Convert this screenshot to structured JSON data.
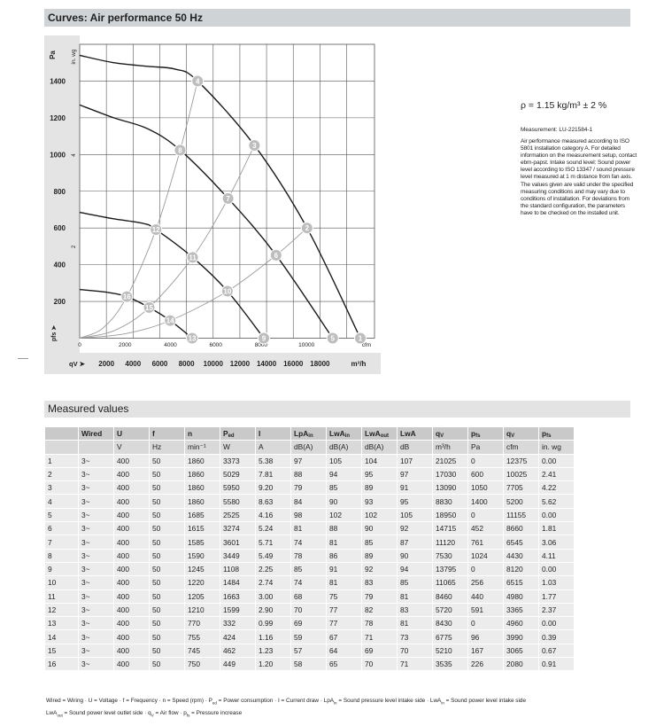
{
  "section_curves": "Curves: Air performance 50 Hz",
  "section_measured": "Measured values",
  "notes": {
    "density": "ρ = 1.15 kg/m³ ± 2 %",
    "measurement": "Measurement: LU-221584-1",
    "paragraph": "Air performance measured according to ISO 5801 installation category A. For detailed information on the measurement setup, contact ebm-papst. Intake sound level: Sound power level according to ISO 13347 / sound pressure level measured at 1 m distance from fan axis. The values given are valid under the specified measuring conditions and may vary due to conditions of installation. For deviations from the standard configuration, the parameters have to be checked on the installed unit."
  },
  "chart_data": {
    "type": "line",
    "ylabel": "Pa",
    "ylabel2": "in. wg",
    "yaxis_marker": "pfs ➤",
    "ylim": [
      0,
      1600
    ],
    "yticks": [
      200,
      400,
      600,
      800,
      1000,
      1200,
      1400
    ],
    "yticks_labels": [
      "200",
      "400",
      "600",
      "800",
      "1000",
      "1200",
      "1400"
    ],
    "y2ticks_labels": [
      "2",
      "4"
    ],
    "y2ticks_inwg": [
      2,
      4
    ],
    "xlabel": "cfm",
    "xlim": [
      0,
      13000
    ],
    "xticks_labels": [
      "0",
      "2000",
      "4000",
      "6000",
      "8000",
      "10000"
    ],
    "xticks_cfm": [
      0,
      2000,
      4000,
      6000,
      8000,
      10000
    ],
    "x2label": "m³/h",
    "x2marker": "qV ➤",
    "x2ticks_labels": [
      "2000",
      "4000",
      "6000",
      "8000",
      "10000",
      "12000",
      "14000",
      "16000",
      "18000"
    ],
    "x2ticks_m3h": [
      2000,
      4000,
      6000,
      8000,
      10000,
      12000,
      14000,
      16000,
      18000
    ],
    "grid": true,
    "fan_curves": [
      {
        "points": [
          [
            0,
            1540
          ],
          [
            1500,
            1500
          ],
          [
            3000,
            1480
          ],
          [
            4200,
            1465
          ],
          [
            5200,
            1400
          ],
          [
            7705,
            1050
          ],
          [
            10025,
            600
          ],
          [
            12375,
            0
          ]
        ]
      },
      {
        "points": [
          [
            0,
            1270
          ],
          [
            1500,
            1200
          ],
          [
            3000,
            1140
          ],
          [
            4430,
            1024
          ],
          [
            6545,
            761
          ],
          [
            8660,
            452
          ],
          [
            11155,
            0
          ]
        ]
      },
      {
        "points": [
          [
            0,
            685
          ],
          [
            1500,
            650
          ],
          [
            2800,
            625
          ],
          [
            3365,
            591
          ],
          [
            4980,
            440
          ],
          [
            6515,
            256
          ],
          [
            8120,
            0
          ]
        ]
      },
      {
        "points": [
          [
            0,
            265
          ],
          [
            1200,
            250
          ],
          [
            2080,
            226
          ],
          [
            3065,
            167
          ],
          [
            3990,
            96
          ],
          [
            4960,
            0
          ]
        ]
      }
    ],
    "system_curves": [
      [
        "16",
        "12",
        "8",
        "4"
      ],
      [
        "15",
        "11",
        "7",
        "3"
      ],
      [
        "14",
        "10",
        "6",
        "2"
      ]
    ],
    "operating_points": [
      {
        "label": "1",
        "cfm": 12375,
        "pa": 0
      },
      {
        "label": "2",
        "cfm": 10025,
        "pa": 600
      },
      {
        "label": "3",
        "cfm": 7705,
        "pa": 1050
      },
      {
        "label": "4",
        "cfm": 5200,
        "pa": 1400
      },
      {
        "label": "5",
        "cfm": 11155,
        "pa": 0
      },
      {
        "label": "6",
        "cfm": 8660,
        "pa": 452
      },
      {
        "label": "7",
        "cfm": 6545,
        "pa": 761
      },
      {
        "label": "8",
        "cfm": 4430,
        "pa": 1024
      },
      {
        "label": "9",
        "cfm": 8120,
        "pa": 0
      },
      {
        "label": "10",
        "cfm": 6515,
        "pa": 256
      },
      {
        "label": "11",
        "cfm": 4980,
        "pa": 440
      },
      {
        "label": "12",
        "cfm": 3365,
        "pa": 591
      },
      {
        "label": "13",
        "cfm": 4960,
        "pa": 0
      },
      {
        "label": "14",
        "cfm": 3990,
        "pa": 96
      },
      {
        "label": "15",
        "cfm": 3065,
        "pa": 167
      },
      {
        "label": "16",
        "cfm": 2080,
        "pa": 226
      }
    ],
    "colors": {
      "fan_curve": "#1a1a1a",
      "system_curve": "#9a9a9a",
      "marker": "#bdbdbd",
      "grid": "#555555",
      "axis_band": "#e4e4e4"
    }
  },
  "table": {
    "headers": [
      [
        ""
      ],
      [
        "Wired"
      ],
      [
        "U"
      ],
      [
        "f"
      ],
      [
        "n"
      ],
      [
        "P",
        "ed"
      ],
      [
        "I"
      ],
      [
        "LpA",
        "in"
      ],
      [
        "LwA",
        "in"
      ],
      [
        "LwA",
        "out"
      ],
      [
        "LwA"
      ],
      [
        "q",
        "V"
      ],
      [
        "p",
        "fs"
      ],
      [
        "q",
        "V"
      ],
      [
        "p",
        "fs"
      ]
    ],
    "units": [
      "",
      "",
      "V",
      "Hz",
      "min⁻¹",
      "W",
      "A",
      "dB(A)",
      "dB(A)",
      "dB(A)",
      "dB",
      "m³/h",
      "Pa",
      "cfm",
      "in. wg"
    ],
    "rows": [
      [
        "1",
        "3~",
        "400",
        "50",
        "1860",
        "3373",
        "5.38",
        "97",
        "105",
        "104",
        "107",
        "21025",
        "0",
        "12375",
        "0.00"
      ],
      [
        "2",
        "3~",
        "400",
        "50",
        "1860",
        "5029",
        "7.81",
        "88",
        "94",
        "95",
        "97",
        "17030",
        "600",
        "10025",
        "2.41"
      ],
      [
        "3",
        "3~",
        "400",
        "50",
        "1860",
        "5950",
        "9.20",
        "79",
        "85",
        "89",
        "91",
        "13090",
        "1050",
        "7705",
        "4.22"
      ],
      [
        "4",
        "3~",
        "400",
        "50",
        "1860",
        "5580",
        "8.63",
        "84",
        "90",
        "93",
        "95",
        "8830",
        "1400",
        "5200",
        "5.62"
      ],
      [
        "5",
        "3~",
        "400",
        "50",
        "1685",
        "2525",
        "4.16",
        "98",
        "102",
        "102",
        "105",
        "18950",
        "0",
        "11155",
        "0.00"
      ],
      [
        "6",
        "3~",
        "400",
        "50",
        "1615",
        "3274",
        "5.24",
        "81",
        "88",
        "90",
        "92",
        "14715",
        "452",
        "8660",
        "1.81"
      ],
      [
        "7",
        "3~",
        "400",
        "50",
        "1585",
        "3601",
        "5.71",
        "74",
        "81",
        "85",
        "87",
        "11120",
        "761",
        "6545",
        "3.06"
      ],
      [
        "8",
        "3~",
        "400",
        "50",
        "1590",
        "3449",
        "5.49",
        "78",
        "86",
        "89",
        "90",
        "7530",
        "1024",
        "4430",
        "4.11"
      ],
      [
        "9",
        "3~",
        "400",
        "50",
        "1245",
        "1108",
        "2.25",
        "85",
        "91",
        "92",
        "94",
        "13795",
        "0",
        "8120",
        "0.00"
      ],
      [
        "10",
        "3~",
        "400",
        "50",
        "1220",
        "1484",
        "2.74",
        "74",
        "81",
        "83",
        "85",
        "11065",
        "256",
        "6515",
        "1.03"
      ],
      [
        "11",
        "3~",
        "400",
        "50",
        "1205",
        "1663",
        "3.00",
        "68",
        "75",
        "79",
        "81",
        "8460",
        "440",
        "4980",
        "1.77"
      ],
      [
        "12",
        "3~",
        "400",
        "50",
        "1210",
        "1599",
        "2.90",
        "70",
        "77",
        "82",
        "83",
        "5720",
        "591",
        "3365",
        "2.37"
      ],
      [
        "13",
        "3~",
        "400",
        "50",
        "770",
        "332",
        "0.99",
        "69",
        "77",
        "78",
        "81",
        "8430",
        "0",
        "4960",
        "0.00"
      ],
      [
        "14",
        "3~",
        "400",
        "50",
        "755",
        "424",
        "1.16",
        "59",
        "67",
        "71",
        "73",
        "6775",
        "96",
        "3990",
        "0.39"
      ],
      [
        "15",
        "3~",
        "400",
        "50",
        "745",
        "462",
        "1.23",
        "57",
        "64",
        "69",
        "70",
        "5210",
        "167",
        "3065",
        "0.67"
      ],
      [
        "16",
        "3~",
        "400",
        "50",
        "750",
        "449",
        "1.20",
        "58",
        "65",
        "70",
        "71",
        "3535",
        "226",
        "2080",
        "0.91"
      ]
    ]
  },
  "footnote": [
    [
      [
        "Wired = Wiring · U = Voltage · f = Frequency · n = Speed (rpm) · P"
      ],
      [
        "ed",
        "sub"
      ],
      [
        " = Power consumption · I = Current draw · LpA"
      ],
      [
        "in",
        "sub"
      ],
      [
        " = Sound pressure level intake side · LwA"
      ],
      [
        "in",
        "sub"
      ],
      [
        " = Sound power level intake side"
      ]
    ],
    [
      [
        "LwA"
      ],
      [
        "out",
        "sub"
      ],
      [
        " = Sound power level outlet side · q"
      ],
      [
        "V",
        "sub"
      ],
      [
        " = Air flow · p"
      ],
      [
        "fs",
        "sub"
      ],
      [
        " = Pressure increase"
      ]
    ]
  ]
}
